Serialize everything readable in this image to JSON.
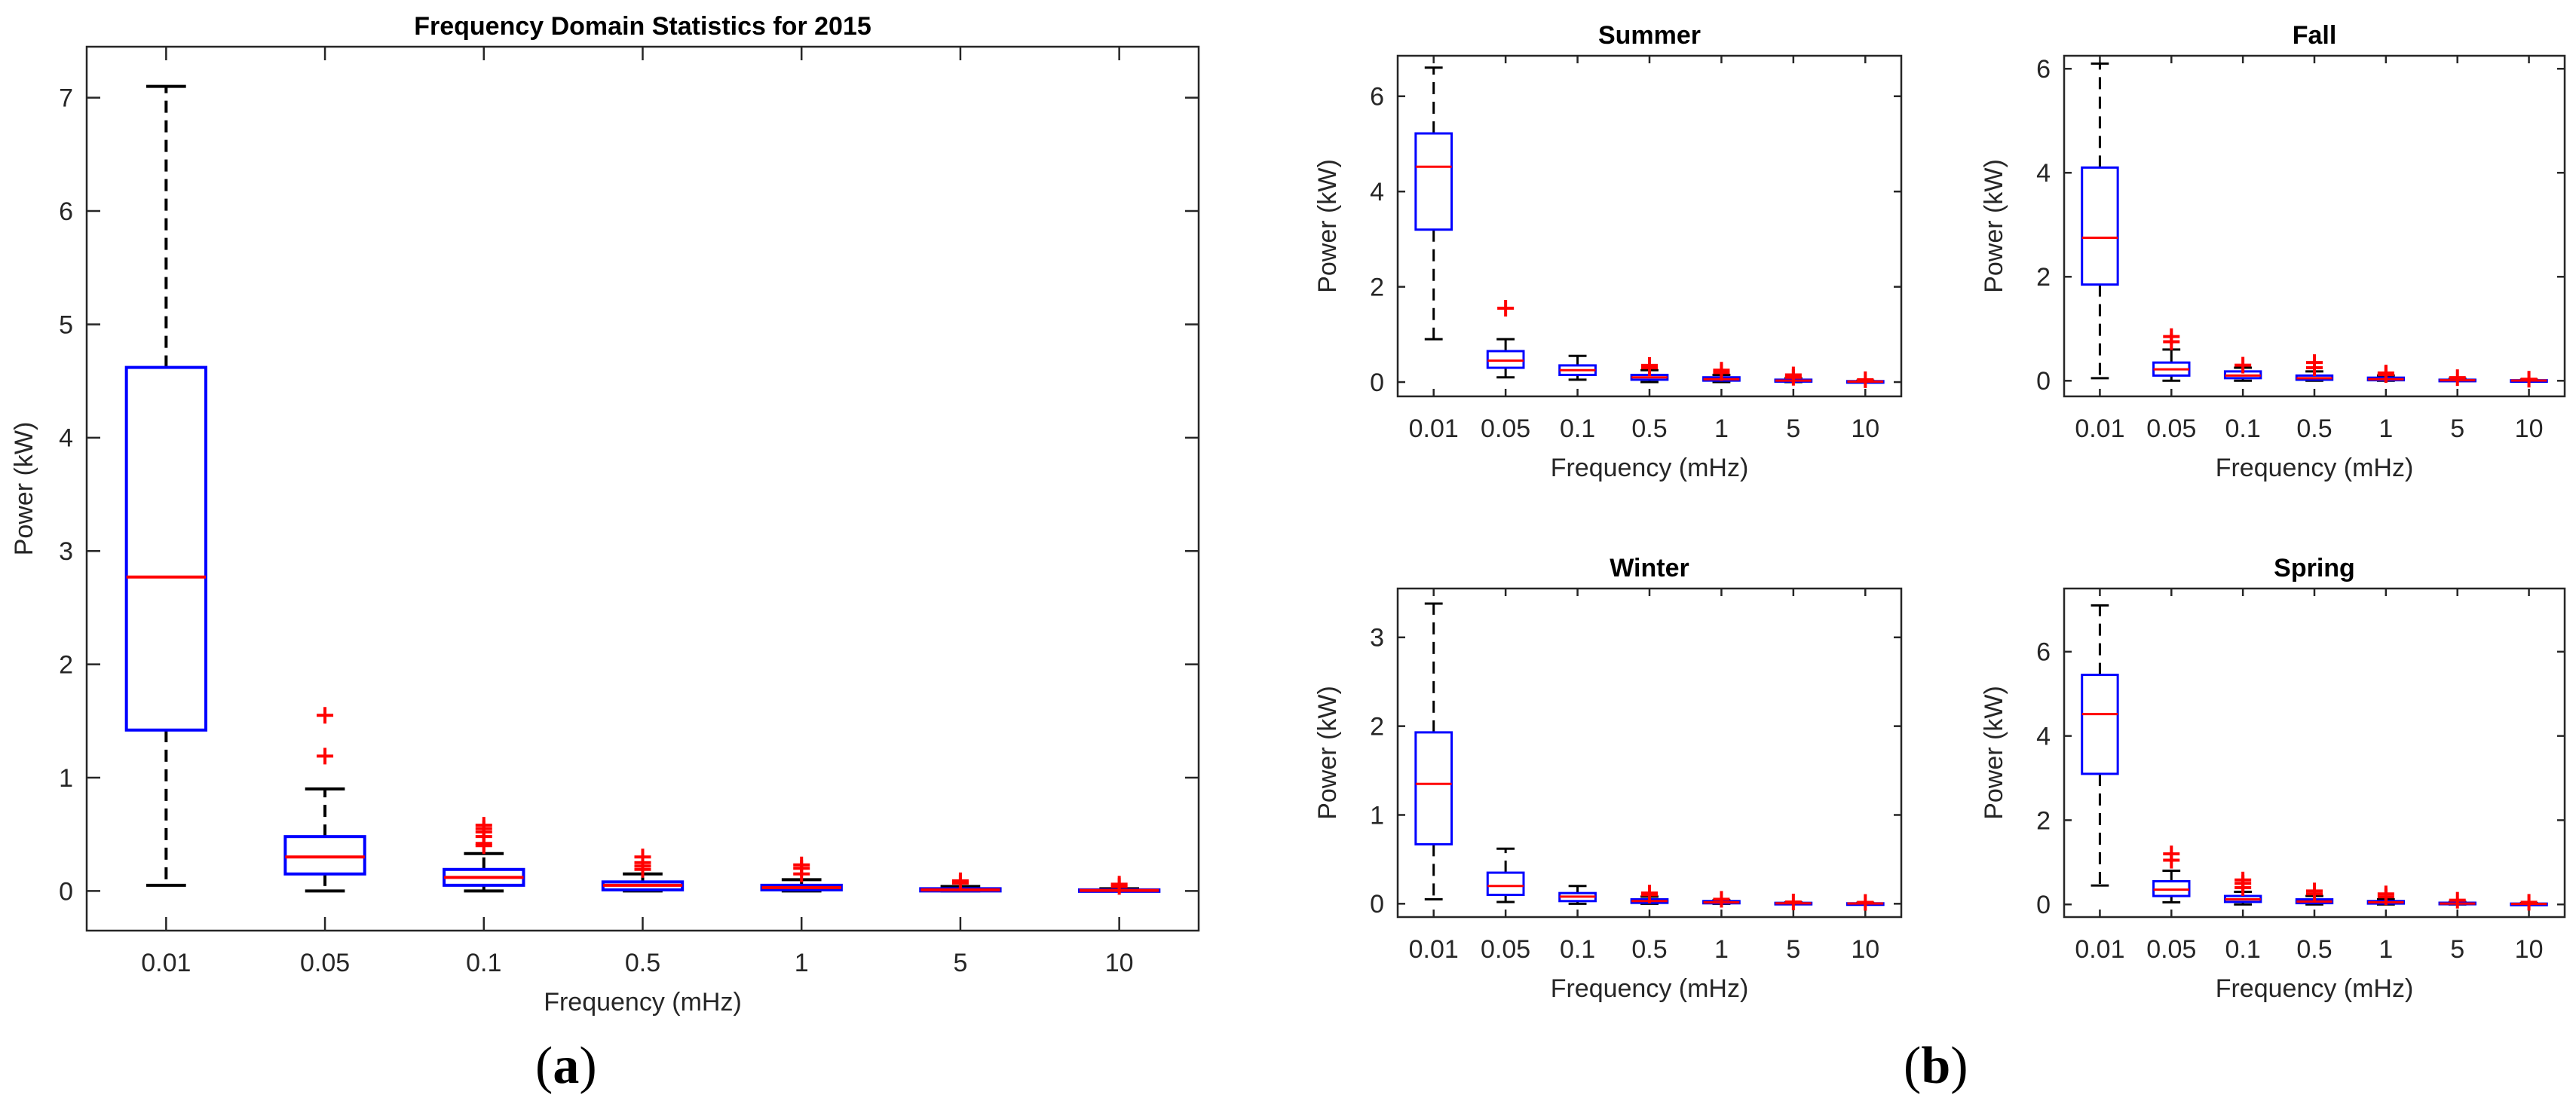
{
  "panel_labels": {
    "a": "a",
    "b": "b"
  },
  "colors": {
    "box": "#0000ff",
    "median": "#ff0000",
    "outlier": "#ff0000",
    "whisker": "#000000",
    "axis": "#262626"
  },
  "chart_data": [
    {
      "id": "main",
      "type": "boxplot",
      "title": "Frequency Domain Statistics for 2015",
      "xlabel": "Frequency (mHz)",
      "ylabel": "Power (kW)",
      "ylim": [
        -0.35,
        7.45
      ],
      "yticks": [
        0,
        1,
        2,
        3,
        4,
        5,
        6,
        7
      ],
      "categories": [
        "0.01",
        "0.05",
        "0.1",
        "0.5",
        "1",
        "5",
        "10"
      ],
      "boxes": [
        {
          "min": 0.05,
          "q1": 1.42,
          "median": 2.77,
          "q3": 4.62,
          "max": 7.1,
          "outliers": []
        },
        {
          "min": 0.0,
          "q1": 0.15,
          "median": 0.3,
          "q3": 0.48,
          "max": 0.9,
          "outliers": [
            1.19,
            1.55
          ]
        },
        {
          "min": 0.0,
          "q1": 0.05,
          "median": 0.12,
          "q3": 0.19,
          "max": 0.33,
          "outliers": [
            0.4,
            0.42,
            0.48,
            0.52,
            0.55,
            0.58
          ]
        },
        {
          "min": 0.0,
          "q1": 0.01,
          "median": 0.05,
          "q3": 0.08,
          "max": 0.15,
          "outliers": [
            0.19,
            0.22,
            0.25,
            0.3
          ]
        },
        {
          "min": 0.0,
          "q1": 0.01,
          "median": 0.03,
          "q3": 0.05,
          "max": 0.1,
          "outliers": [
            0.15,
            0.2,
            0.23
          ]
        },
        {
          "min": 0.0,
          "q1": 0.0,
          "median": 0.01,
          "q3": 0.02,
          "max": 0.04,
          "outliers": [
            0.07,
            0.09
          ]
        },
        {
          "min": 0.0,
          "q1": 0.0,
          "median": 0.005,
          "q3": 0.01,
          "max": 0.02,
          "outliers": [
            0.04,
            0.06
          ]
        }
      ]
    },
    {
      "id": "summer",
      "type": "boxplot",
      "title": "Summer",
      "xlabel": "Frequency (mHz)",
      "ylabel": "Power (kW)",
      "ylim": [
        -0.3,
        6.85
      ],
      "yticks": [
        0,
        2,
        4,
        6
      ],
      "categories": [
        "0.01",
        "0.05",
        "0.1",
        "0.5",
        "1",
        "5",
        "10"
      ],
      "boxes": [
        {
          "min": 0.9,
          "q1": 3.2,
          "median": 4.52,
          "q3": 5.22,
          "max": 6.6,
          "outliers": []
        },
        {
          "min": 0.1,
          "q1": 0.3,
          "median": 0.45,
          "q3": 0.65,
          "max": 0.9,
          "outliers": [
            1.55
          ]
        },
        {
          "min": 0.05,
          "q1": 0.15,
          "median": 0.25,
          "q3": 0.35,
          "max": 0.55,
          "outliers": []
        },
        {
          "min": 0.0,
          "q1": 0.05,
          "median": 0.1,
          "q3": 0.15,
          "max": 0.25,
          "outliers": [
            0.3,
            0.35
          ]
        },
        {
          "min": 0.0,
          "q1": 0.03,
          "median": 0.06,
          "q3": 0.1,
          "max": 0.15,
          "outliers": [
            0.2,
            0.25
          ]
        },
        {
          "min": 0.0,
          "q1": 0.01,
          "median": 0.03,
          "q3": 0.05,
          "max": 0.08,
          "outliers": [
            0.1,
            0.15
          ]
        },
        {
          "min": 0.0,
          "q1": 0.0,
          "median": 0.01,
          "q3": 0.02,
          "max": 0.03,
          "outliers": [
            0.05
          ]
        }
      ]
    },
    {
      "id": "fall",
      "type": "boxplot",
      "title": "Fall",
      "xlabel": "Frequency (mHz)",
      "ylabel": "Power (kW)",
      "ylim": [
        -0.3,
        6.25
      ],
      "yticks": [
        0,
        2,
        4,
        6
      ],
      "categories": [
        "0.01",
        "0.05",
        "0.1",
        "0.5",
        "1",
        "5",
        "10"
      ],
      "boxes": [
        {
          "min": 0.05,
          "q1": 1.85,
          "median": 2.75,
          "q3": 4.1,
          "max": 6.1,
          "outliers": []
        },
        {
          "min": 0.0,
          "q1": 0.1,
          "median": 0.22,
          "q3": 0.35,
          "max": 0.6,
          "outliers": [
            0.85,
            0.75
          ]
        },
        {
          "min": 0.0,
          "q1": 0.05,
          "median": 0.1,
          "q3": 0.18,
          "max": 0.25,
          "outliers": [
            0.3
          ]
        },
        {
          "min": 0.0,
          "q1": 0.02,
          "median": 0.05,
          "q3": 0.1,
          "max": 0.18,
          "outliers": [
            0.25,
            0.35
          ]
        },
        {
          "min": 0.0,
          "q1": 0.01,
          "median": 0.03,
          "q3": 0.06,
          "max": 0.1,
          "outliers": [
            0.12,
            0.15
          ]
        },
        {
          "min": 0.0,
          "q1": 0.0,
          "median": 0.01,
          "q3": 0.02,
          "max": 0.04,
          "outliers": [
            0.06
          ]
        },
        {
          "min": 0.0,
          "q1": 0.0,
          "median": 0.005,
          "q3": 0.01,
          "max": 0.02,
          "outliers": [
            0.03
          ]
        }
      ]
    },
    {
      "id": "winter",
      "type": "boxplot",
      "title": "Winter",
      "xlabel": "Frequency (mHz)",
      "ylabel": "Power (kW)",
      "ylim": [
        -0.15,
        3.55
      ],
      "yticks": [
        0,
        1,
        2,
        3
      ],
      "categories": [
        "0.01",
        "0.05",
        "0.1",
        "0.5",
        "1",
        "5",
        "10"
      ],
      "boxes": [
        {
          "min": 0.05,
          "q1": 0.67,
          "median": 1.35,
          "q3": 1.93,
          "max": 3.38,
          "outliers": []
        },
        {
          "min": 0.02,
          "q1": 0.1,
          "median": 0.2,
          "q3": 0.35,
          "max": 0.62,
          "outliers": []
        },
        {
          "min": 0.0,
          "q1": 0.03,
          "median": 0.08,
          "q3": 0.12,
          "max": 0.2,
          "outliers": []
        },
        {
          "min": 0.0,
          "q1": 0.01,
          "median": 0.03,
          "q3": 0.05,
          "max": 0.08,
          "outliers": [
            0.1,
            0.12
          ]
        },
        {
          "min": 0.0,
          "q1": 0.005,
          "median": 0.015,
          "q3": 0.03,
          "max": 0.04,
          "outliers": [
            0.05
          ]
        },
        {
          "min": 0.0,
          "q1": 0.0,
          "median": 0.005,
          "q3": 0.01,
          "max": 0.015,
          "outliers": [
            0.02
          ]
        },
        {
          "min": 0.0,
          "q1": 0.0,
          "median": 0.003,
          "q3": 0.005,
          "max": 0.01,
          "outliers": [
            0.015
          ]
        }
      ]
    },
    {
      "id": "spring",
      "type": "boxplot",
      "title": "Spring",
      "xlabel": "Frequency (mHz)",
      "ylabel": "Power (kW)",
      "ylim": [
        -0.3,
        7.5
      ],
      "yticks": [
        0,
        2,
        4,
        6
      ],
      "categories": [
        "0.01",
        "0.05",
        "0.1",
        "0.5",
        "1",
        "5",
        "10"
      ],
      "boxes": [
        {
          "min": 0.45,
          "q1": 3.1,
          "median": 4.52,
          "q3": 5.45,
          "max": 7.1,
          "outliers": []
        },
        {
          "min": 0.05,
          "q1": 0.2,
          "median": 0.35,
          "q3": 0.55,
          "max": 0.8,
          "outliers": [
            1.05,
            1.2
          ]
        },
        {
          "min": 0.0,
          "q1": 0.06,
          "median": 0.12,
          "q3": 0.2,
          "max": 0.3,
          "outliers": [
            0.4,
            0.5,
            0.58
          ]
        },
        {
          "min": 0.0,
          "q1": 0.03,
          "median": 0.07,
          "q3": 0.12,
          "max": 0.2,
          "outliers": [
            0.25,
            0.32
          ]
        },
        {
          "min": 0.0,
          "q1": 0.02,
          "median": 0.05,
          "q3": 0.08,
          "max": 0.12,
          "outliers": [
            0.18,
            0.25
          ]
        },
        {
          "min": 0.0,
          "q1": 0.005,
          "median": 0.02,
          "q3": 0.04,
          "max": 0.06,
          "outliers": [
            0.1
          ]
        },
        {
          "min": 0.0,
          "q1": 0.0,
          "median": 0.01,
          "q3": 0.02,
          "max": 0.03,
          "outliers": [
            0.05
          ]
        }
      ]
    }
  ]
}
